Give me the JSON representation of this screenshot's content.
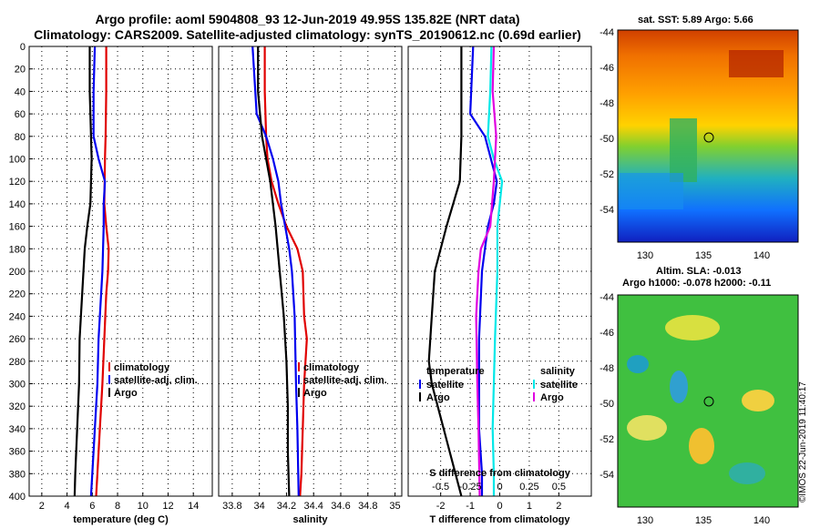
{
  "header": {
    "line1": "Argo profile: aoml 5904808_93 12-Jun-2019 49.95S 135.82E (NRT data)",
    "line2": "Climatology: CARS2009. Satellite-adjusted climatology: synTS_20190612.nc (0.69d earlier)"
  },
  "colors": {
    "climatology": "#e00000",
    "satellite": "#0000ee",
    "argo": "#000000",
    "sat_salinity": "#00e8e8",
    "argo_salinity": "#e000e0"
  },
  "chart_data": [
    {
      "type": "line",
      "name": "temperature",
      "xlabel": "temperature (deg C)",
      "ylabel": "",
      "xlim": [
        1,
        15.5
      ],
      "ylim": [
        400,
        0
      ],
      "xticks": [
        "2",
        "4",
        "6",
        "8",
        "10",
        "12",
        "14"
      ],
      "yticks": [
        "0",
        "20",
        "40",
        "60",
        "80",
        "100",
        "120",
        "140",
        "160",
        "180",
        "200",
        "220",
        "240",
        "260",
        "280",
        "300",
        "320",
        "340",
        "360",
        "380",
        "400"
      ],
      "grid": true,
      "legend": [
        "climatology",
        "satellite-adj. clim.",
        "Argo"
      ],
      "series": [
        {
          "name": "climatology",
          "color": "#e00000",
          "depth": [
            0,
            40,
            80,
            100,
            140,
            160,
            180,
            200,
            220,
            260,
            300,
            340,
            380,
            400
          ],
          "values": [
            7.1,
            7.1,
            7.05,
            7.0,
            6.95,
            7.1,
            7.3,
            7.25,
            7.1,
            6.95,
            6.8,
            6.6,
            6.4,
            6.3
          ]
        },
        {
          "name": "satellite-adj. clim.",
          "color": "#0000ee",
          "depth": [
            0,
            40,
            80,
            100,
            120,
            140,
            160,
            200,
            260,
            300,
            340,
            380,
            400
          ],
          "values": [
            6.2,
            6.1,
            6.1,
            6.5,
            7.0,
            6.9,
            6.9,
            6.8,
            6.5,
            6.4,
            6.2,
            6.0,
            5.9
          ]
        },
        {
          "name": "Argo",
          "color": "#000000",
          "depth": [
            0,
            40,
            80,
            100,
            120,
            140,
            160,
            180,
            200,
            220,
            260,
            300,
            340,
            380,
            400
          ],
          "values": [
            5.8,
            5.8,
            5.9,
            5.95,
            5.9,
            5.85,
            5.6,
            5.4,
            5.3,
            5.2,
            5.0,
            4.95,
            4.8,
            4.65,
            4.6
          ]
        }
      ]
    },
    {
      "type": "line",
      "name": "salinity",
      "xlabel": "salinity",
      "ylabel": "",
      "xlim": [
        33.7,
        35.05
      ],
      "ylim": [
        400,
        0
      ],
      "xticks": [
        "33.8",
        "34",
        "34.2",
        "34.4",
        "34.6",
        "34.8",
        "35"
      ],
      "grid": true,
      "legend": [
        "climatology",
        "satellite-adj. clim.",
        "Argo"
      ],
      "series": [
        {
          "name": "climatology",
          "color": "#e00000",
          "depth": [
            0,
            40,
            80,
            100,
            120,
            140,
            160,
            180,
            200,
            240,
            260,
            300,
            340,
            380,
            400
          ],
          "values": [
            34.04,
            34.04,
            34.05,
            34.06,
            34.09,
            34.14,
            34.2,
            34.28,
            34.32,
            34.33,
            34.35,
            34.33,
            34.32,
            34.31,
            34.3
          ],
          "note": "upper part stays near 34.04"
        },
        {
          "name": "satellite-adj. clim.",
          "color": "#0000ee",
          "depth": [
            0,
            20,
            60,
            80,
            100,
            120,
            140,
            160,
            180,
            200,
            240,
            300,
            340,
            400
          ],
          "values": [
            33.95,
            33.96,
            33.98,
            34.05,
            34.1,
            34.14,
            34.16,
            34.19,
            34.22,
            34.24,
            34.26,
            34.27,
            34.28,
            34.29
          ]
        },
        {
          "name": "Argo",
          "color": "#000000",
          "depth": [
            0,
            40,
            80,
            120,
            160,
            200,
            240,
            280,
            320,
            360,
            400
          ],
          "values": [
            33.99,
            33.99,
            34.02,
            34.08,
            34.12,
            34.15,
            34.18,
            34.2,
            34.21,
            34.21,
            34.22
          ]
        }
      ]
    },
    {
      "type": "line",
      "name": "difference",
      "xlabel": "T difference from climatology",
      "xlabel_top": "S difference from climatology",
      "xlim": [
        -3.1,
        3.1
      ],
      "ylim": [
        400,
        0
      ],
      "xticks": [
        "-2",
        "-1",
        "0",
        "1",
        "2"
      ],
      "xticks_s": [
        "-0.5",
        "-0.25",
        "0",
        "0.25",
        "0.5"
      ],
      "grid": true,
      "legend_temperature": {
        "title": "temperature",
        "items": [
          "satellite",
          "Argo"
        ]
      },
      "legend_salinity": {
        "title": "salinity",
        "items": [
          "satellite",
          "Argo"
        ]
      },
      "series": [
        {
          "name": "temperature satellite",
          "color": "#0000ee",
          "depth": [
            0,
            60,
            80,
            100,
            120,
            140,
            160,
            200,
            260,
            300,
            340,
            380,
            400
          ],
          "values": [
            -0.9,
            -1.0,
            -0.5,
            -0.3,
            -0.1,
            -0.2,
            -0.4,
            -0.6,
            -0.7,
            -0.7,
            -0.7,
            -0.6,
            -0.6
          ]
        },
        {
          "name": "temperature Argo",
          "color": "#000000",
          "depth": [
            0,
            60,
            80,
            120,
            160,
            200,
            240,
            280,
            300,
            340,
            380,
            400
          ],
          "values": [
            -1.3,
            -1.3,
            -1.3,
            -1.35,
            -1.8,
            -2.2,
            -2.3,
            -2.4,
            -2.3,
            -1.9,
            -1.5,
            -1.3
          ]
        },
        {
          "name": "salinity satellite",
          "color": "#00e8e8",
          "depth": [
            0,
            40,
            80,
            100,
            120,
            160,
            200,
            260,
            300,
            340,
            380,
            400
          ],
          "values": [
            -0.07,
            -0.08,
            -0.1,
            -0.05,
            0.02,
            -0.02,
            -0.02,
            -0.04,
            -0.05,
            -0.06,
            -0.05,
            -0.05
          ]
        },
        {
          "name": "salinity Argo",
          "color": "#e000e0",
          "depth": [
            0,
            40,
            80,
            120,
            160,
            180,
            200,
            240,
            300,
            340,
            400
          ],
          "values": [
            -0.05,
            -0.06,
            -0.03,
            -0.05,
            -0.08,
            -0.16,
            -0.18,
            -0.2,
            -0.19,
            -0.18,
            -0.17
          ]
        }
      ]
    }
  ],
  "maps": [
    {
      "name": "sst",
      "title": "sat. SST: 5.89 Argo: 5.66",
      "title_line2": "",
      "yticks": [
        "-44",
        "-46",
        "-48",
        "-50",
        "-52",
        "-54"
      ],
      "xticks": [
        "130",
        "135",
        "140"
      ]
    },
    {
      "name": "sla",
      "title": "Altim. SLA: -0.013",
      "title_line2": "Argo h1000: -0.078 h2000: -0.11",
      "yticks": [
        "-44",
        "-46",
        "-48",
        "-50",
        "-52",
        "-54"
      ],
      "xticks": [
        "130",
        "135",
        "140"
      ]
    }
  ],
  "credit": "©IMOS 22-Jun-2019 11:40:17"
}
